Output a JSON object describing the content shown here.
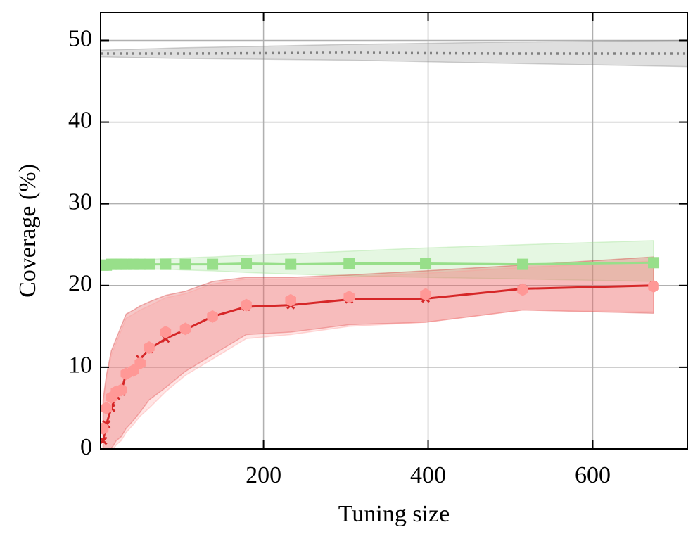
{
  "chart_data": {
    "type": "line",
    "xlabel": "Tuning size",
    "ylabel": "Coverage (%)",
    "x": [
      5,
      9,
      15,
      21,
      27,
      33,
      42,
      50,
      61,
      81,
      105,
      138,
      179,
      233,
      304,
      397,
      515,
      674
    ],
    "series": [
      {
        "color": "#808080",
        "style": "dotted",
        "marker": "none",
        "x": [
          2,
          100,
          300,
          500,
          715
        ],
        "values": [
          48.4,
          48.4,
          48.5,
          48.4,
          48.4
        ],
        "lower": [
          48.0,
          47.8,
          47.6,
          47.2,
          46.8
        ],
        "upper": [
          48.8,
          49.1,
          49.5,
          49.8,
          50.0
        ]
      },
      {
        "color": "#98df8a",
        "style": "solid",
        "marker": "square",
        "values": [
          22.5,
          22.5,
          22.6,
          22.6,
          22.6,
          22.6,
          22.6,
          22.6,
          22.6,
          22.6,
          22.6,
          22.6,
          22.7,
          22.6,
          22.7,
          22.7,
          22.6,
          22.8
        ],
        "lower": [
          22.1,
          22.1,
          22.1,
          22.1,
          22.1,
          22.1,
          22.1,
          22.1,
          22.0,
          22.0,
          21.9,
          21.8,
          21.6,
          21.4,
          21.2,
          21.0,
          20.8,
          20.5
        ],
        "upper": [
          22.9,
          22.9,
          23.0,
          23.0,
          23.0,
          23.0,
          23.1,
          23.1,
          23.2,
          23.3,
          23.4,
          23.5,
          23.7,
          23.9,
          24.2,
          24.6,
          25.0,
          25.5
        ]
      },
      {
        "color": "#d62728",
        "style": "solid",
        "marker": "x",
        "values": [
          1.0,
          3.0,
          5.0,
          6.5,
          7.0,
          9.2,
          9.6,
          11.0,
          12.2,
          13.5,
          14.6,
          16.2,
          17.4,
          17.6,
          18.3,
          18.4,
          19.6,
          20.0
        ],
        "lower": [
          -3.0,
          -2.0,
          0.0,
          1.0,
          1.5,
          2.5,
          3.5,
          4.5,
          6.0,
          7.5,
          9.5,
          11.5,
          14.0,
          14.3,
          15.2,
          15.5,
          17.0,
          16.6
        ],
        "upper": [
          6.0,
          9.0,
          12.0,
          13.5,
          15.0,
          16.5,
          17.0,
          17.5,
          18.0,
          18.8,
          19.3,
          20.5,
          21.0,
          21.0,
          21.3,
          21.8,
          22.5,
          23.5
        ]
      },
      {
        "color": "#ff9896",
        "style": "none",
        "marker": "hexagon",
        "values": [
          2.5,
          5.0,
          6.3,
          7.0,
          7.2,
          9.2,
          9.6,
          10.5,
          12.4,
          14.3,
          14.7,
          16.2,
          17.6,
          18.2,
          18.6,
          18.9,
          19.5,
          19.9
        ],
        "lower": [
          -3.5,
          -2.5,
          -0.5,
          0.5,
          1.0,
          2.0,
          3.0,
          4.0,
          5.0,
          7.0,
          9.0,
          11.0,
          13.5,
          14.0,
          15.0,
          15.5,
          17.0,
          16.8
        ],
        "upper": [
          5.5,
          8.5,
          11.5,
          13.0,
          14.5,
          16.0,
          16.5,
          17.0,
          17.5,
          18.5,
          19.0,
          20.2,
          20.8,
          20.8,
          21.0,
          21.5,
          22.2,
          23.0
        ]
      }
    ],
    "xlim": [
      2,
      715
    ],
    "ylim": [
      0,
      53.4
    ],
    "xticks": [
      200,
      400,
      600
    ],
    "yticks": [
      0,
      10,
      20,
      30,
      40,
      50
    ],
    "grid": true
  }
}
